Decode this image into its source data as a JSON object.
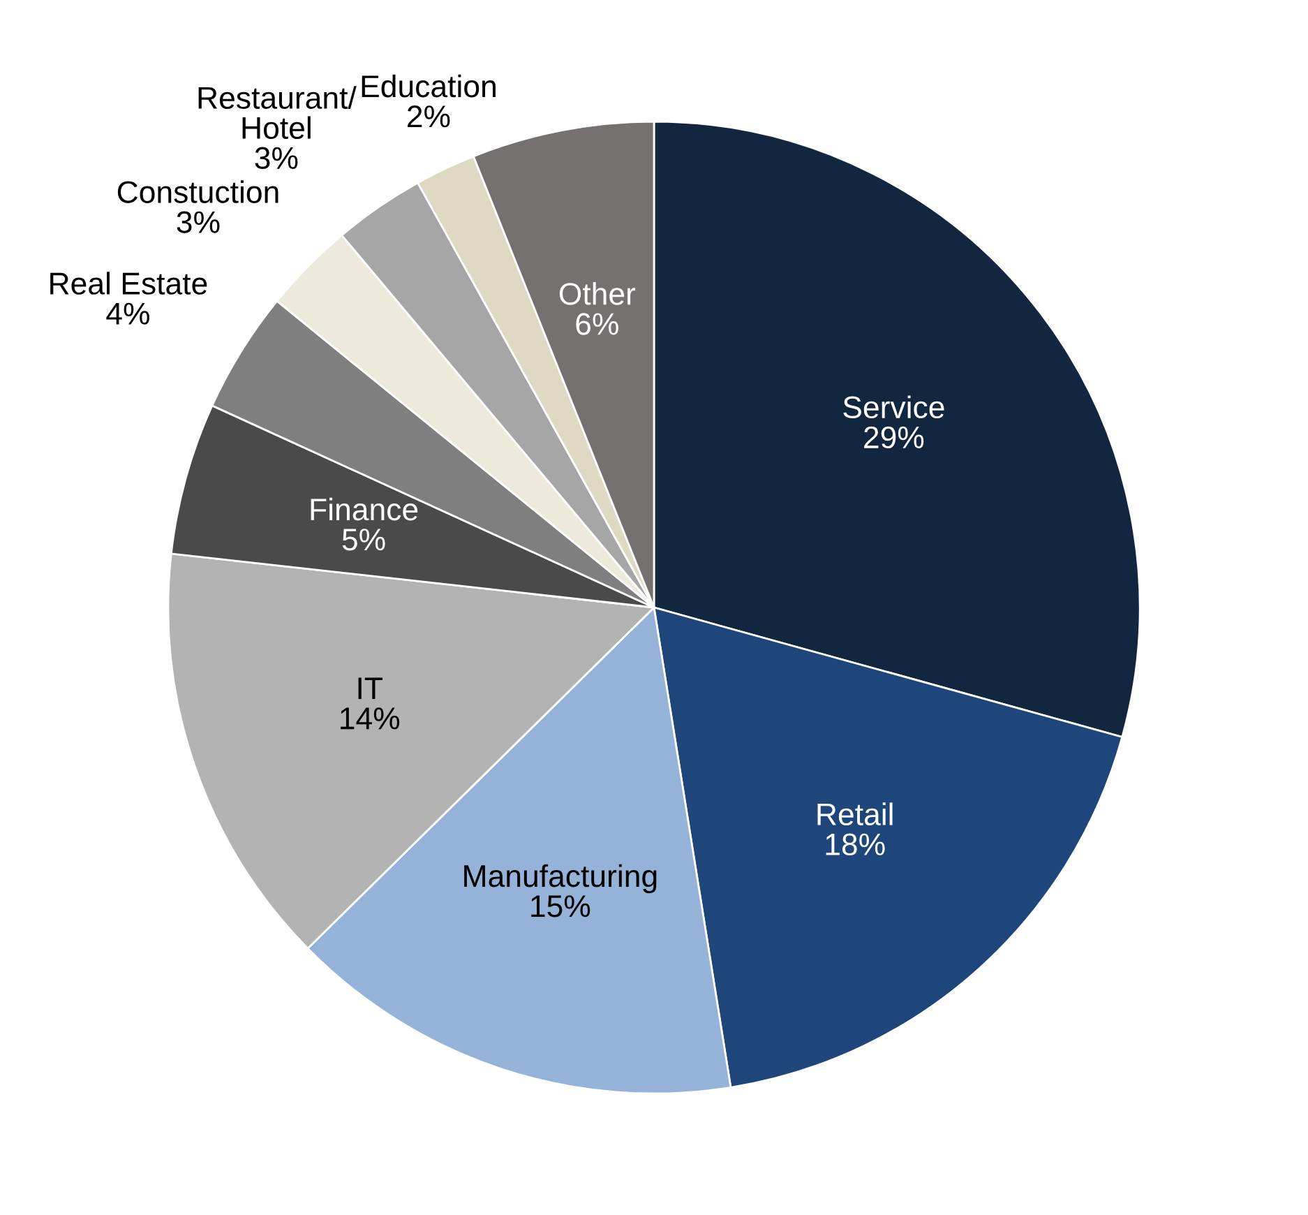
{
  "chart_data": {
    "type": "pie",
    "categories": [
      "Service",
      "Retail",
      "Manufacturing",
      "IT",
      "Finance",
      "Real Estate",
      "Constuction",
      "Restaurant/\nHotel",
      "Education",
      "Other"
    ],
    "values": [
      29,
      18,
      15,
      14,
      5,
      4,
      3,
      3,
      2,
      6
    ],
    "value_labels": [
      "29%",
      "18%",
      "15%",
      "14%",
      "5%",
      "4%",
      "3%",
      "3%",
      "2%",
      "6%"
    ],
    "colors": [
      "#12263f",
      "#1f467a",
      "#95b2d8",
      "#b3b3b3",
      "#4a4a4a",
      "#7f7f7f",
      "#edeadc",
      "#a6a6a6",
      "#ddd9c3",
      "#767171"
    ],
    "legend": false
  }
}
